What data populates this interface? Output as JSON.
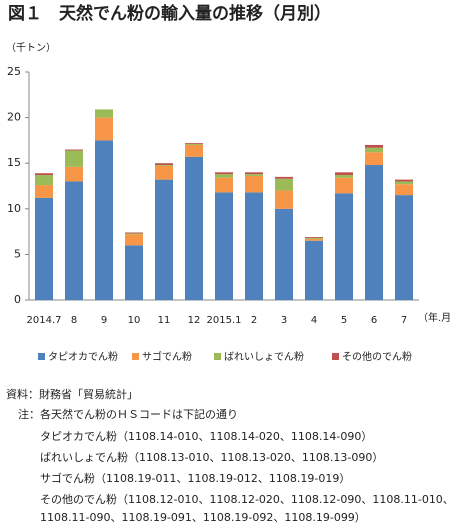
{
  "chart_data": {
    "type": "stacked_bar",
    "title": "図１　天然でん粉の輸入量の推移（月別）",
    "y_label": "（千トン）",
    "x_label": "（年.月）",
    "categories": [
      "2014.7",
      "8",
      "9",
      "10",
      "11",
      "12",
      "2015.1",
      "2",
      "3",
      "4",
      "5",
      "6",
      "7"
    ],
    "series": [
      {
        "name": "タピオカでん粉",
        "color": "#4f81bd",
        "values": [
          11.2,
          13.0,
          17.5,
          6.0,
          13.2,
          15.7,
          11.8,
          11.8,
          10.0,
          6.5,
          11.7,
          14.8,
          11.5
        ]
      },
      {
        "name": "サゴでん粉",
        "color": "#f79646",
        "values": [
          1.4,
          1.6,
          2.5,
          1.2,
          1.5,
          1.3,
          1.6,
          1.8,
          2.0,
          0.2,
          1.7,
          1.4,
          1.2
        ]
      },
      {
        "name": "ばれいしょでん粉",
        "color": "#9bbb59",
        "values": [
          1.1,
          1.8,
          0.9,
          0.1,
          0.1,
          0.1,
          0.4,
          0.2,
          1.3,
          0.1,
          0.3,
          0.5,
          0.3
        ]
      },
      {
        "name": "その他のでん粉",
        "color": "#c0504d",
        "values": [
          0.2,
          0.1,
          0,
          0.1,
          0.2,
          0.1,
          0.2,
          0.2,
          0.2,
          0.1,
          0.3,
          0.3,
          0.2
        ]
      }
    ],
    "ylim": [
      0,
      25
    ],
    "yticks": [
      0,
      5,
      10,
      15,
      20,
      25
    ],
    "grid": false,
    "legend": "bottom"
  },
  "notes": {
    "source": "資料：財務省「貿易統計」",
    "lines": [
      "注：各天然でん粉のＨＳコードは下記の通り",
      "タピオカでん粉（1108.14-010、1108.14-020、1108.14-090）",
      "ばれいしょでん粉（1108.13-010、1108.13-020、1108.13-090）",
      "サゴでん粉（1108.19-011、1108.19-012、1108.19-019）",
      "その他のでん粉（1108.12-010、1108.12-020、1108.12-090、1108.11-010、",
      "1108.11-090、1108.19-091、1108.19-092、1108.19-099）"
    ]
  }
}
